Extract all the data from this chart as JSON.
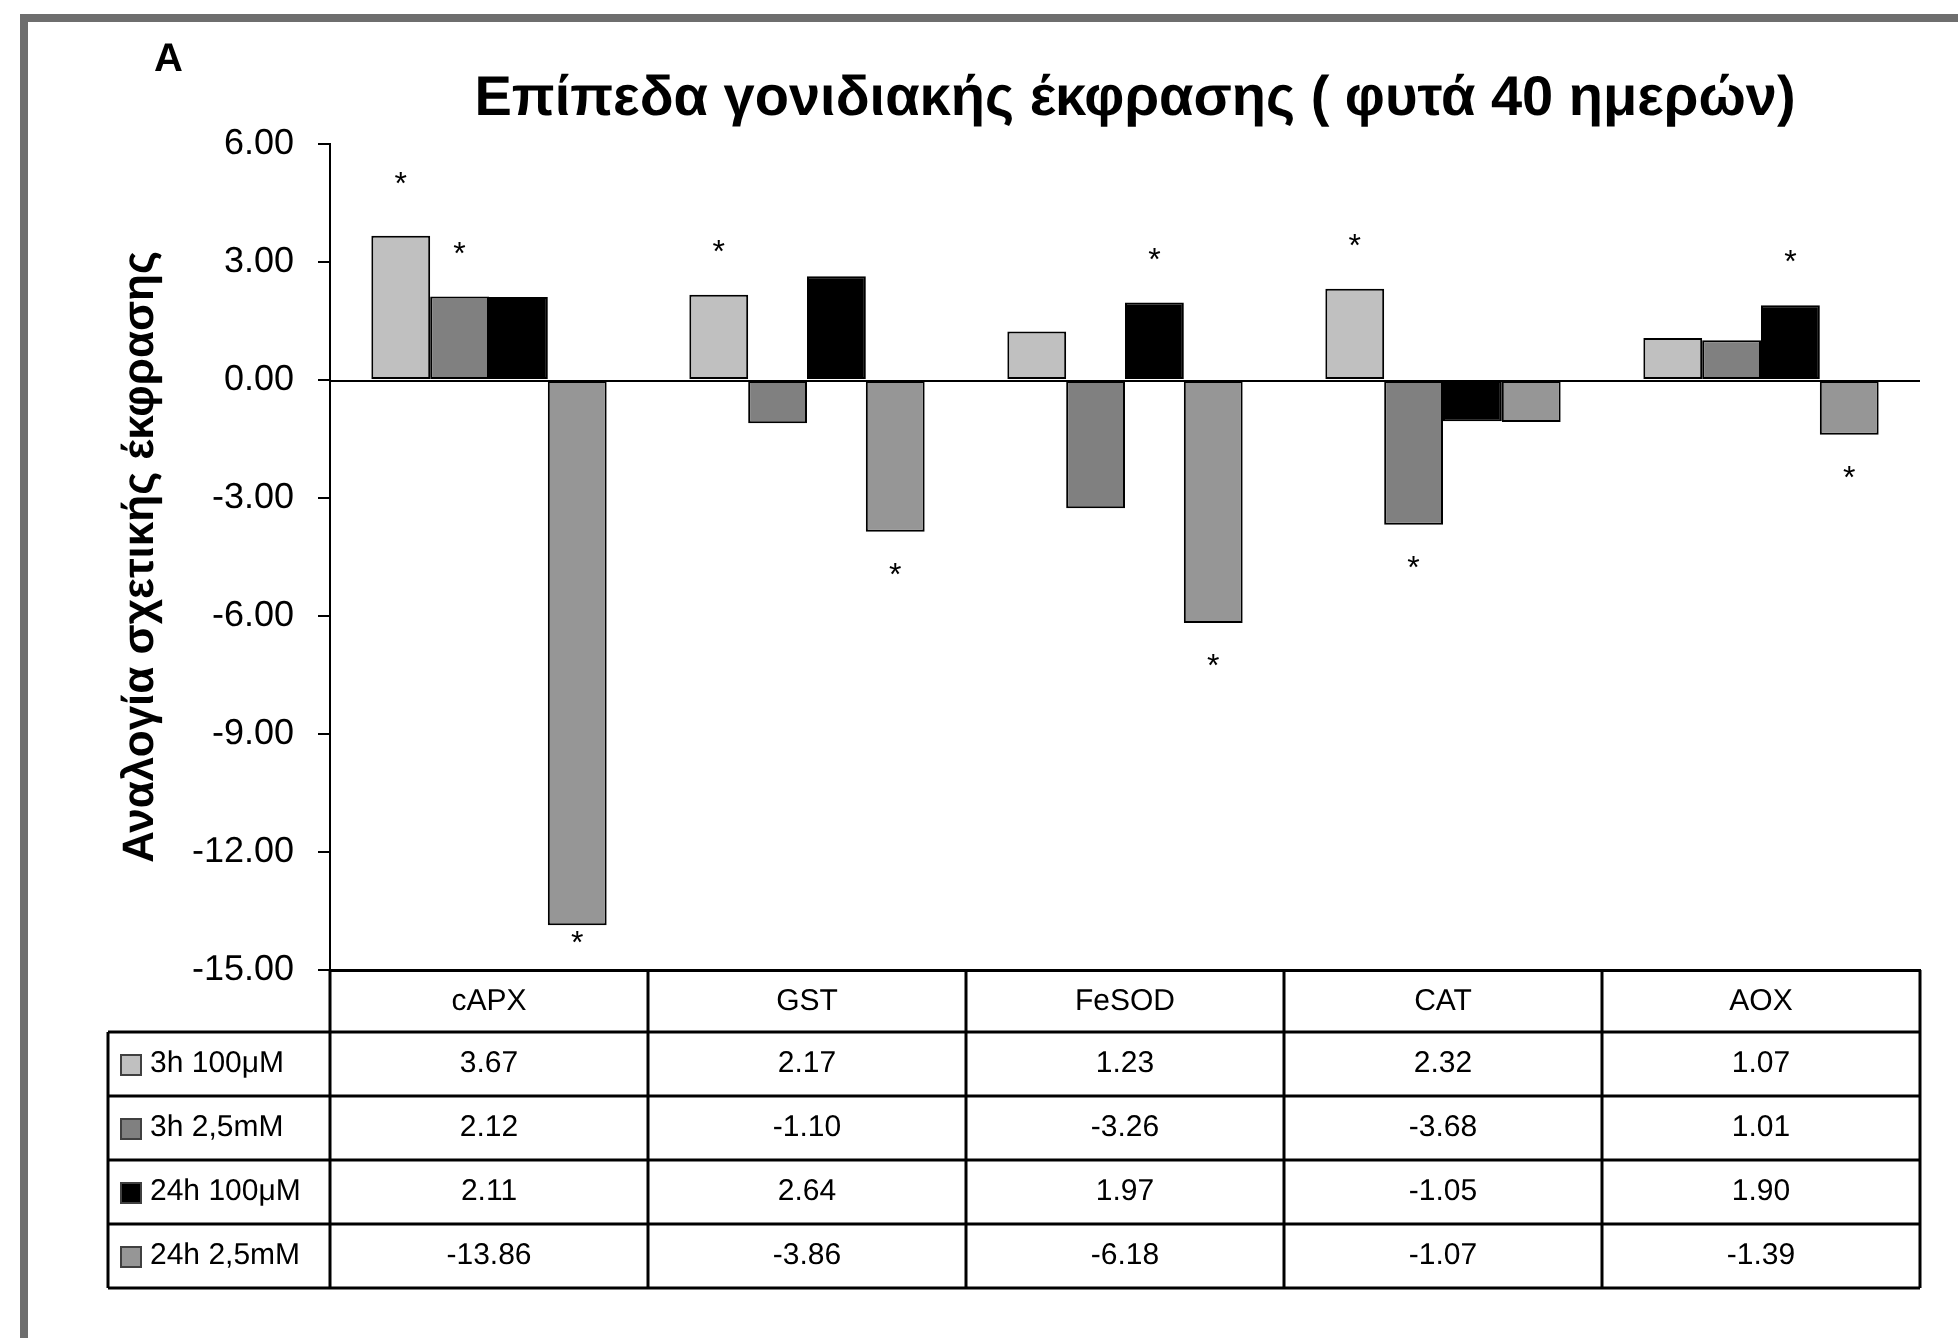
{
  "chart_data": {
    "type": "bar",
    "title": "Επίπεδα γονιδιακής έκφρασης ( φυτά 40 ημερών)",
    "ylabel": "Αναλογία σχετικής έκφρασης",
    "annotations": [
      "A",
      "*",
      "*",
      "*",
      "*",
      "*",
      "*",
      "*",
      "*",
      "*",
      "*",
      "*"
    ],
    "categories": [
      "cAPX",
      "GST",
      "FeSOD",
      "CAT",
      "AOX"
    ],
    "series": [
      {
        "name": "3h 100μM",
        "color": "#c0c0c0",
        "values": [
          3.67,
          2.17,
          1.23,
          2.32,
          1.07
        ],
        "value_labels": [
          "3.67",
          "2.17",
          "1.23",
          "2.32",
          "1.07"
        ]
      },
      {
        "name": "3h 2,5mM",
        "color": "#808080",
        "values": [
          2.12,
          -1.1,
          -3.26,
          -3.68,
          1.01
        ],
        "value_labels": [
          "2.12",
          "-1.10",
          "-3.26",
          "-3.68",
          "1.01"
        ]
      },
      {
        "name": "24h 100μM",
        "color": "#000000",
        "values": [
          2.11,
          2.64,
          1.97,
          -1.05,
          1.9
        ],
        "value_labels": [
          "2.11",
          "2.64",
          "1.97",
          "-1.05",
          "1.90"
        ]
      },
      {
        "name": "24h 2,5mM",
        "color": "#969696",
        "values": [
          -13.86,
          -3.86,
          -6.18,
          -1.07,
          -1.39
        ],
        "value_labels": [
          "-13.86",
          "-3.86",
          "-6.18",
          "-1.07",
          "-1.39"
        ]
      }
    ],
    "ylim": [
      -15,
      6
    ],
    "yticks": [
      {
        "value": -15,
        "label": "-15.00"
      },
      {
        "value": -12,
        "label": "-12.00"
      },
      {
        "value": -9,
        "label": "-9.00"
      },
      {
        "value": -6,
        "label": "-6.00"
      },
      {
        "value": -3,
        "label": "-3.00"
      },
      {
        "value": 0,
        "label": "0.00"
      },
      {
        "value": 3,
        "label": "3.00"
      },
      {
        "value": 6,
        "label": "6.00"
      }
    ],
    "legend": "bottom"
  }
}
